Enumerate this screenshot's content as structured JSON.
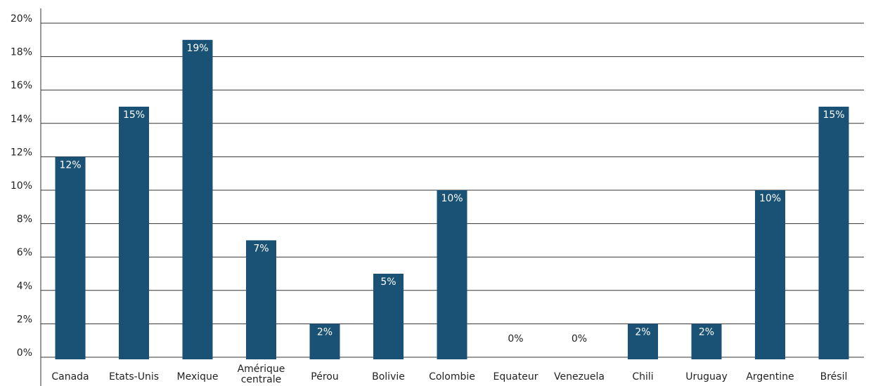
{
  "chart_data": {
    "type": "bar",
    "categories": [
      "Canada",
      "Etats-Unis",
      "Mexique",
      "Amérique centrale",
      "Pérou",
      "Bolivie",
      "Colombie",
      "Equateur",
      "Venezuela",
      "Chili",
      "Uruguay",
      "Argentine",
      "Brésil"
    ],
    "values": [
      12,
      15,
      19,
      7,
      2,
      5,
      10,
      0,
      0,
      2,
      2,
      10,
      15
    ],
    "data_labels": [
      "12%",
      "15%",
      "19%",
      "7%",
      "2%",
      "5%",
      "10%",
      "0%",
      "0%",
      "2%",
      "2%",
      "10%",
      "15%"
    ],
    "y_ticks": [
      0,
      2,
      4,
      6,
      8,
      10,
      12,
      14,
      16,
      18,
      20
    ],
    "y_tick_labels": [
      "0%",
      "2%",
      "4%",
      "6%",
      "8%",
      "10%",
      "12%",
      "14%",
      "16%",
      "18%",
      "20%"
    ],
    "ylim": [
      0,
      20
    ],
    "grid": true,
    "legend": "none",
    "colors": {
      "bar": "#1a5276",
      "label_inside": "#ffffff",
      "label_outside": "#222222",
      "grid": "#333333"
    }
  }
}
